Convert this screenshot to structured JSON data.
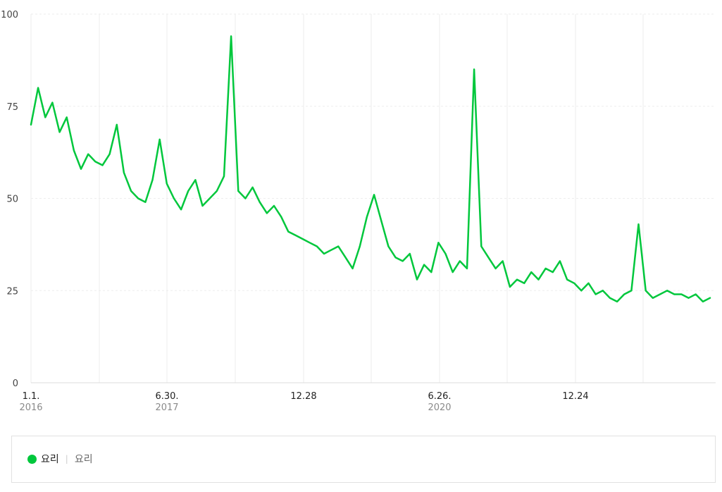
{
  "chart_data": {
    "type": "line",
    "ylim": [
      0,
      100
    ],
    "yticks": [
      "0",
      "25",
      "50",
      "75",
      "100"
    ],
    "xticks": [
      {
        "label": "1.1.",
        "year": "2016"
      },
      {
        "label": "6.30.",
        "year": "2017"
      },
      {
        "label": "12.28",
        "year": ""
      },
      {
        "label": "6.26.",
        "year": "2020"
      },
      {
        "label": "12.24",
        "year": ""
      }
    ],
    "grid": true,
    "legend": "bottom",
    "series": [
      {
        "name": "요리",
        "color": "#00c73c",
        "x": [
          "2016-01",
          "2016-02",
          "2016-03",
          "2016-04",
          "2016-05",
          "2016-06",
          "2016-07",
          "2016-08",
          "2016-09",
          "2016-10",
          "2016-11",
          "2016-12",
          "2017-01",
          "2017-02",
          "2017-03",
          "2017-04",
          "2017-05",
          "2017-06",
          "2017-07",
          "2017-08",
          "2017-09",
          "2017-10",
          "2017-11",
          "2017-12",
          "2018-01",
          "2018-02",
          "2018-03",
          "2018-04",
          "2018-05",
          "2018-06",
          "2018-07",
          "2018-08",
          "2018-09",
          "2018-10",
          "2018-11",
          "2018-12",
          "2019-01",
          "2019-02",
          "2019-03",
          "2019-04",
          "2019-05",
          "2019-06",
          "2019-07",
          "2019-08",
          "2019-09",
          "2019-10",
          "2019-11",
          "2019-12",
          "2020-01",
          "2020-02",
          "2020-03",
          "2020-04",
          "2020-05",
          "2020-06",
          "2020-07",
          "2020-08",
          "2020-09",
          "2020-10",
          "2020-11",
          "2020-12",
          "2021-01",
          "2021-02",
          "2021-03",
          "2021-04",
          "2021-05",
          "2021-06",
          "2021-07",
          "2021-08",
          "2021-09",
          "2021-10",
          "2021-11",
          "2021-12",
          "2022-01",
          "2022-02",
          "2022-03",
          "2022-04",
          "2022-05",
          "2022-06",
          "2022-07",
          "2022-08",
          "2022-09",
          "2022-10",
          "2022-11",
          "2022-12",
          "2023-01",
          "2023-02",
          "2023-03",
          "2023-04",
          "2023-05",
          "2023-06",
          "2023-07",
          "2023-08",
          "2023-09",
          "2023-10",
          "2023-11",
          "2023-12"
        ],
        "values": [
          70,
          80,
          72,
          76,
          68,
          72,
          63,
          58,
          62,
          60,
          59,
          62,
          70,
          57,
          52,
          50,
          49,
          55,
          66,
          54,
          50,
          47,
          52,
          55,
          48,
          50,
          52,
          56,
          94,
          52,
          50,
          53,
          49,
          46,
          48,
          45,
          41,
          40,
          39,
          38,
          37,
          35,
          36,
          37,
          34,
          31,
          37,
          45,
          51,
          44,
          37,
          34,
          33,
          35,
          28,
          32,
          30,
          38,
          35,
          30,
          33,
          31,
          85,
          37,
          34,
          31,
          33,
          26,
          28,
          27,
          30,
          28,
          31,
          30,
          33,
          28,
          27,
          25,
          27,
          24,
          25,
          23,
          22,
          24,
          25,
          43,
          25,
          23,
          24,
          25,
          24,
          24,
          23,
          24,
          22,
          23
        ]
      }
    ]
  },
  "legend": {
    "label": "요리",
    "sublabel": "요리",
    "color": "#00c73c"
  }
}
